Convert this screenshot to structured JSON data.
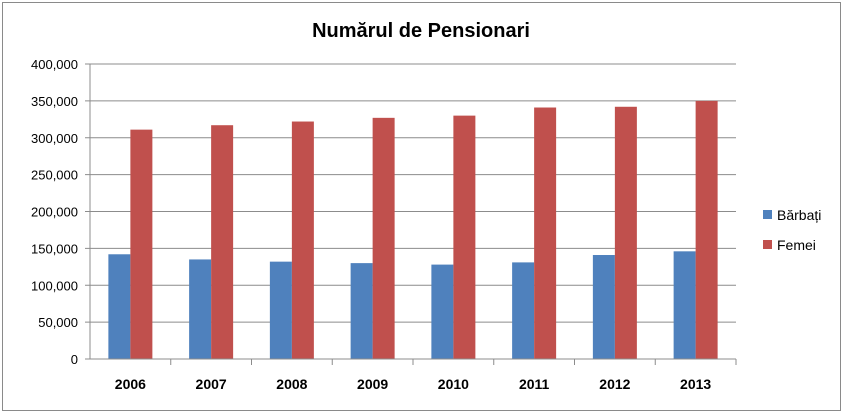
{
  "chart_data": {
    "type": "bar",
    "title": "Numărul de Pensionari",
    "xlabel": "",
    "ylabel": "",
    "categories": [
      "2006",
      "2007",
      "2008",
      "2009",
      "2010",
      "2011",
      "2012",
      "2013"
    ],
    "series": [
      {
        "name": "Bărbați",
        "color": "#4f81bd",
        "values": [
          142000,
          135000,
          132000,
          130000,
          128000,
          131000,
          141000,
          146000
        ]
      },
      {
        "name": "Femei",
        "color": "#c0504d",
        "values": [
          311000,
          317000,
          322000,
          327000,
          330000,
          341000,
          342000,
          350000
        ]
      }
    ],
    "ylim": [
      0,
      400000
    ],
    "yticks": [
      0,
      50000,
      100000,
      150000,
      200000,
      250000,
      300000,
      350000,
      400000
    ],
    "ytick_labels": [
      "0",
      "50,000",
      "100,000",
      "150,000",
      "200,000",
      "250,000",
      "300,000",
      "350,000",
      "400,000"
    ],
    "grid": true,
    "legend_position": "right"
  }
}
